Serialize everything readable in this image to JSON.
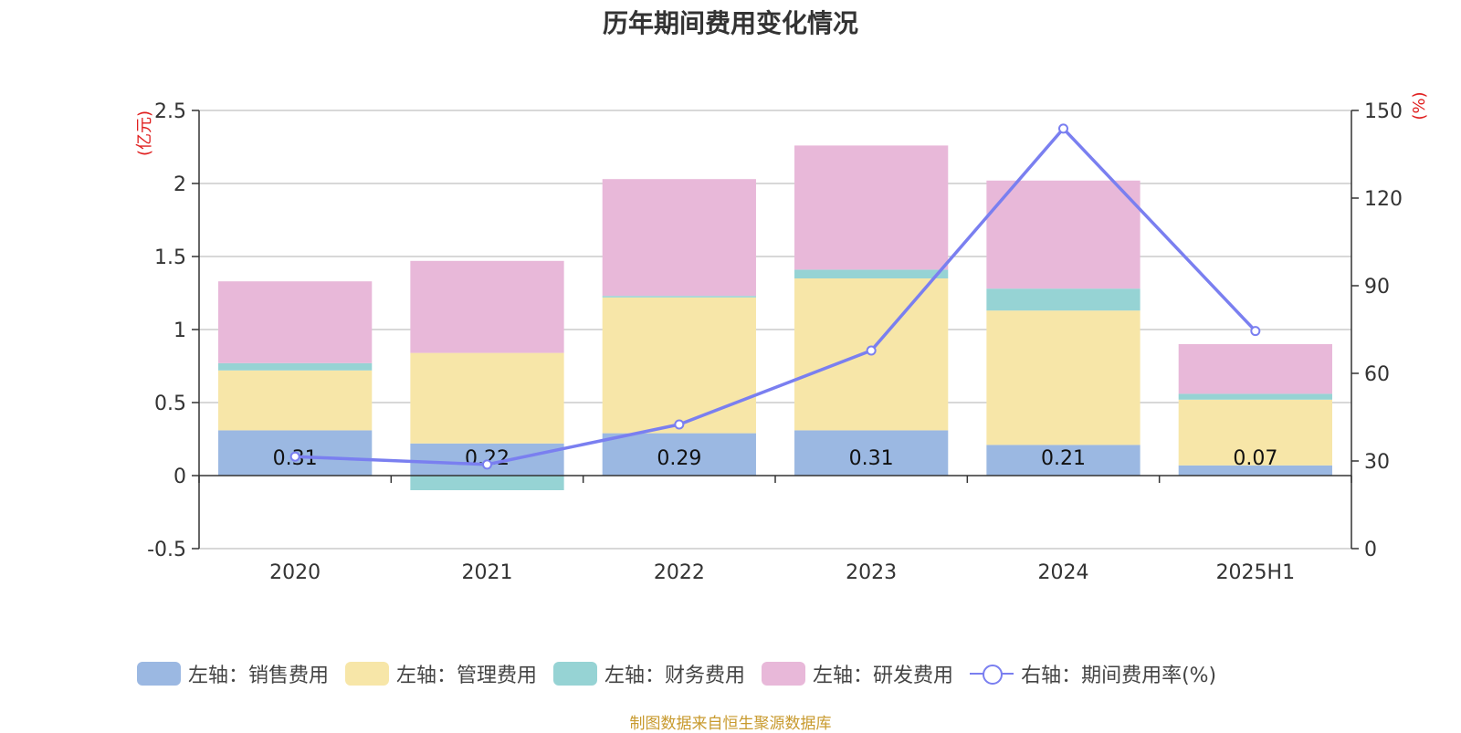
{
  "chart_data": {
    "type": "bar",
    "title": "历年期间费用变化情况",
    "left_axis_label": "(亿元)",
    "right_axis_label": "(%)",
    "categories": [
      "2020",
      "2021",
      "2022",
      "2023",
      "2024",
      "2025H1"
    ],
    "stacked": true,
    "series": [
      {
        "name": "左轴：销售费用",
        "axis": "left",
        "color": "#9bb8e2",
        "values": [
          0.31,
          0.22,
          0.29,
          0.31,
          0.21,
          0.07
        ],
        "labels": [
          "0.31",
          "0.22",
          "0.29",
          "0.31",
          "0.21",
          "0.07"
        ]
      },
      {
        "name": "左轴：管理费用",
        "axis": "left",
        "color": "#f7e6a8",
        "values": [
          0.41,
          0.62,
          0.93,
          1.04,
          0.92,
          0.45
        ]
      },
      {
        "name": "左轴：财务费用",
        "axis": "left",
        "color": "#96d3d4",
        "values": [
          0.05,
          -0.1,
          0.01,
          0.06,
          0.15,
          0.04
        ]
      },
      {
        "name": "左轴：研发费用",
        "axis": "left",
        "color": "#e8b8d9",
        "values": [
          0.56,
          0.63,
          0.8,
          0.85,
          0.74,
          0.34
        ]
      }
    ],
    "line_series": {
      "name": "右轴：期间费用率(%)",
      "axis": "right",
      "color": "#7a7ff0",
      "values": [
        31.5,
        28.8,
        42.5,
        67.8,
        143.8,
        74.5
      ]
    },
    "ylim_left": [
      -0.5,
      2.5
    ],
    "yticks_left": [
      "-0.5",
      "0",
      "0.5",
      "1",
      "1.5",
      "2",
      "2.5"
    ],
    "ylim_right": [
      0,
      150
    ],
    "yticks_right": [
      "0",
      "30",
      "60",
      "90",
      "120",
      "150"
    ],
    "grid": true,
    "legend_position": "bottom"
  },
  "source_text": "制图数据来自恒生聚源数据库"
}
